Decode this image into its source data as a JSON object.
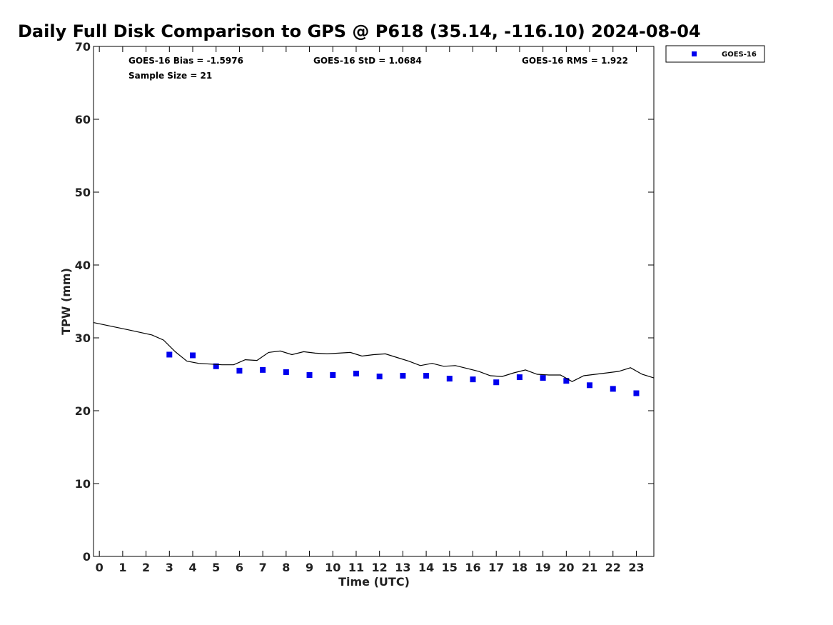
{
  "chart_data": {
    "type": "scatter",
    "title": "Daily Full Disk Comparison to GPS @ P618 (35.14, -116.10) 2024-08-04",
    "xlabel": "Time (UTC)",
    "ylabel": "TPW (mm)",
    "xlim": [
      -0.25,
      23.75
    ],
    "ylim": [
      0,
      70
    ],
    "x_ticks": [
      "0",
      "1",
      "2",
      "3",
      "4",
      "5",
      "6",
      "7",
      "8",
      "9",
      "10",
      "11",
      "12",
      "13",
      "14",
      "15",
      "16",
      "17",
      "18",
      "19",
      "20",
      "21",
      "22",
      "23"
    ],
    "y_ticks": [
      "0",
      "10",
      "20",
      "30",
      "40",
      "50",
      "60",
      "70"
    ],
    "grid": false,
    "legend_position": "top-right",
    "stats": {
      "bias": "GOES-16 Bias = -1.5976",
      "std": "GOES-16 StD = 1.0684",
      "rms": "GOES-16 RMS = 1.922",
      "sample": "Sample Size = 21"
    },
    "series": [
      {
        "name": "GOES-16",
        "kind": "markers",
        "color": "#0000ee",
        "x": [
          3,
          4,
          5,
          6,
          7,
          8,
          9,
          10,
          11,
          12,
          13,
          14,
          15,
          16,
          17,
          18,
          19,
          20,
          21,
          22,
          23
        ],
        "y": [
          27.7,
          27.6,
          26.1,
          25.5,
          25.6,
          25.3,
          24.9,
          24.9,
          25.1,
          24.7,
          24.8,
          24.8,
          24.4,
          24.3,
          23.9,
          24.6,
          24.5,
          24.1,
          23.5,
          23.0,
          22.4
        ]
      },
      {
        "kind": "line",
        "color": "#000000",
        "x": [
          -0.25,
          0.5,
          1.25,
          2.25,
          2.75,
          3.25,
          3.75,
          4.25,
          4.75,
          5.25,
          5.75,
          6.25,
          6.75,
          7.25,
          7.75,
          8.25,
          8.75,
          9.25,
          9.75,
          10.25,
          10.75,
          11.25,
          11.75,
          12.25,
          12.75,
          13.25,
          13.75,
          14.25,
          14.75,
          15.25,
          15.75,
          16.25,
          16.75,
          17.25,
          17.75,
          18.25,
          18.75,
          19.25,
          19.75,
          20.25,
          20.75,
          21.25,
          21.75,
          22.25,
          22.75,
          23.25,
          23.75
        ],
        "y": [
          32.1,
          31.6,
          31.1,
          30.4,
          29.7,
          28.1,
          26.8,
          26.5,
          26.4,
          26.3,
          26.3,
          27.0,
          26.9,
          28.0,
          28.2,
          27.7,
          28.1,
          27.9,
          27.8,
          27.9,
          28.0,
          27.5,
          27.7,
          27.8,
          27.3,
          26.8,
          26.2,
          26.5,
          26.1,
          26.2,
          25.8,
          25.4,
          24.8,
          24.7,
          25.2,
          25.6,
          25.0,
          24.9,
          24.9,
          24.0,
          24.8,
          25.0,
          25.2,
          25.4,
          25.9,
          25.0,
          24.5
        ]
      }
    ]
  }
}
